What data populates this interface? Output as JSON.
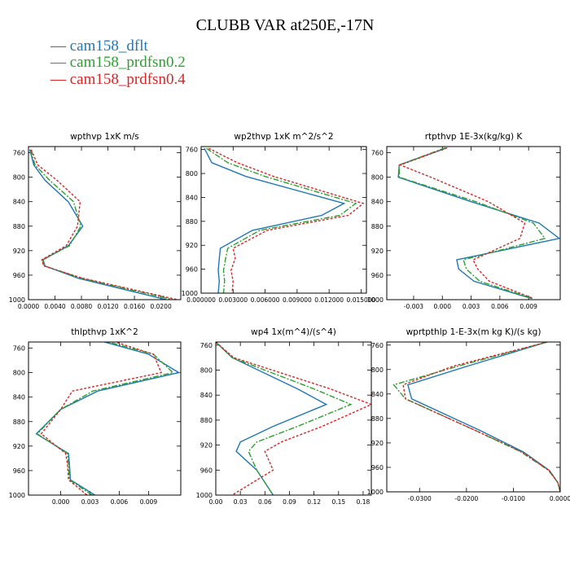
{
  "figure": {
    "title": "CLUBB VAR at250E,-17N",
    "legend": [
      {
        "label": "cam158_dflt",
        "color": "#1f77b4"
      },
      {
        "label": "cam158_prdfsn0.2",
        "color": "#2ca02c"
      },
      {
        "label": "cam158_prdfsn0.4",
        "color": "#d62728"
      }
    ]
  },
  "chart_data": [
    {
      "type": "line",
      "title": "wpthvp  1xK m/s",
      "xlim": [
        0.0,
        0.023
      ],
      "ylim": [
        1000,
        750
      ],
      "xticks": [
        0.0,
        0.004,
        0.008,
        0.012,
        0.016,
        0.02
      ],
      "xticklabels": [
        "0.0000",
        "0.0040",
        "0.0080",
        "0.0120",
        "0.0160",
        "0.0200"
      ],
      "yticks": [
        760,
        800,
        840,
        880,
        920,
        960,
        1000
      ],
      "y": [
        755,
        780,
        805,
        840,
        880,
        912,
        935,
        945,
        965,
        1000
      ],
      "series": [
        {
          "name": "cam158_dflt",
          "values": [
            0.0002,
            0.0008,
            0.0025,
            0.006,
            0.0082,
            0.006,
            0.0022,
            0.0025,
            0.0075,
            0.0208
          ]
        },
        {
          "name": "cam158_prdfsn0.2",
          "values": [
            0.0003,
            0.001,
            0.0032,
            0.0068,
            0.0079,
            0.0062,
            0.0021,
            0.0024,
            0.008,
            0.0218
          ]
        },
        {
          "name": "cam158_prdfsn0.4",
          "values": [
            0.0004,
            0.0014,
            0.0043,
            0.0078,
            0.0074,
            0.0057,
            0.002,
            0.0023,
            0.0082,
            0.0225
          ]
        }
      ]
    },
    {
      "type": "line",
      "title": "wp2thvp  1xK m^2/s^2",
      "xlim": [
        0.0,
        0.0155
      ],
      "ylim": [
        1000,
        755
      ],
      "xticks": [
        0.0,
        0.003,
        0.006,
        0.009,
        0.012,
        0.015
      ],
      "xticklabels": [
        "0.000000",
        "0.003000",
        "0.006000",
        "0.009000",
        "0.012000",
        "0.015000"
      ],
      "yticks": [
        760,
        800,
        840,
        880,
        920,
        960,
        1000
      ],
      "y": [
        758,
        782,
        805,
        850,
        870,
        895,
        925,
        942,
        962,
        980,
        1000
      ],
      "series": [
        {
          "name": "cam158_dflt",
          "values": [
            0.0003,
            0.001,
            0.0042,
            0.0134,
            0.0113,
            0.0048,
            0.0018,
            0.0017,
            0.0016,
            0.0017,
            0.0016
          ]
        },
        {
          "name": "cam158_prdfsn0.2",
          "values": [
            0.0005,
            0.0025,
            0.006,
            0.0145,
            0.013,
            0.0055,
            0.0025,
            0.0023,
            0.0021,
            0.0022,
            0.0021
          ]
        },
        {
          "name": "cam158_prdfsn0.4",
          "values": [
            0.0007,
            0.0034,
            0.0068,
            0.0152,
            0.0138,
            0.0062,
            0.003,
            0.0032,
            0.0028,
            0.003,
            0.0029
          ]
        }
      ]
    },
    {
      "type": "line",
      "title": "rtpthvp  1E-3x(kg/kg) K",
      "xlim": [
        -0.0058,
        0.0123
      ],
      "ylim": [
        1000,
        750
      ],
      "xticks": [
        -0.003,
        0.0,
        0.003,
        0.006,
        0.009
      ],
      "xticklabels": [
        "-0.003",
        "0.000",
        "0.003",
        "0.006",
        "0.009"
      ],
      "yticks": [
        760,
        800,
        840,
        880,
        920,
        960,
        1000
      ],
      "y": [
        752,
        780,
        800,
        840,
        875,
        900,
        935,
        950,
        970,
        998
      ],
      "series": [
        {
          "name": "cam158_dflt",
          "values": [
            0.0005,
            -0.0045,
            -0.0046,
            0.003,
            0.0101,
            0.0122,
            0.0015,
            0.0017,
            0.0033,
            0.0093
          ]
        },
        {
          "name": "cam158_prdfsn0.2",
          "values": [
            0.0003,
            -0.0045,
            -0.0045,
            0.0035,
            0.0095,
            0.0107,
            0.0022,
            0.0025,
            0.0039,
            0.0094
          ]
        },
        {
          "name": "cam158_prdfsn0.4",
          "values": [
            0.0005,
            -0.0044,
            -0.0012,
            0.0048,
            0.0086,
            0.0081,
            0.0032,
            0.0037,
            0.0049,
            0.0095
          ]
        }
      ]
    },
    {
      "type": "line",
      "title": "thlpthvp  1xK^2",
      "xlim": [
        -0.0033,
        0.0123
      ],
      "ylim": [
        1000,
        750
      ],
      "xticks": [
        0.0,
        0.003,
        0.006,
        0.009
      ],
      "xticklabels": [
        "0.000",
        "0.003",
        "0.006",
        "0.009"
      ],
      "yticks": [
        760,
        800,
        840,
        880,
        920,
        960,
        1000
      ],
      "y": [
        747,
        770,
        800,
        830,
        860,
        900,
        932,
        950,
        975,
        1000
      ],
      "series": [
        {
          "name": "cam158_dflt",
          "values": [
            0.0038,
            0.009,
            0.0121,
            0.0038,
            0.0,
            -0.0025,
            0.0008,
            0.0009,
            0.001,
            0.0035
          ]
        },
        {
          "name": "cam158_prdfsn0.2",
          "values": [
            0.0042,
            0.0095,
            0.0115,
            0.0033,
            0.0,
            -0.0024,
            0.0007,
            0.0008,
            0.0009,
            0.0032
          ]
        },
        {
          "name": "cam158_prdfsn0.4",
          "values": [
            0.005,
            0.0095,
            0.0103,
            0.0012,
            0.0,
            -0.002,
            0.0005,
            0.0007,
            0.0008,
            0.0027
          ]
        }
      ]
    },
    {
      "type": "line",
      "title": "wp4  1x(m^4)/(s^4)",
      "xlim": [
        0.0,
        0.19
      ],
      "ylim": [
        1000,
        755
      ],
      "xticks": [
        0.0,
        0.03,
        0.06,
        0.09,
        0.12,
        0.15,
        0.18
      ],
      "xticklabels": [
        "0.00",
        "0.03",
        "0.06",
        "0.09",
        "0.12",
        "0.15",
        "0.18"
      ],
      "yticks": [
        760,
        800,
        840,
        880,
        920,
        960,
        1000
      ],
      "y": [
        755,
        780,
        830,
        855,
        890,
        915,
        930,
        960,
        1000
      ],
      "series": [
        {
          "name": "cam158_dflt",
          "values": [
            0.0,
            0.02,
            0.1,
            0.135,
            0.07,
            0.03,
            0.025,
            0.05,
            0.07
          ]
        },
        {
          "name": "cam158_prdfsn0.2",
          "values": [
            0.0,
            0.02,
            0.12,
            0.165,
            0.1,
            0.05,
            0.04,
            0.05,
            0.07
          ]
        },
        {
          "name": "cam158_prdfsn0.4",
          "values": [
            0.0,
            0.022,
            0.14,
            0.19,
            0.13,
            0.08,
            0.06,
            0.07,
            0.02
          ]
        }
      ]
    },
    {
      "type": "line",
      "title": "wprtpthlp  1-E-3x(m kg K)/(s kg)",
      "xlim": [
        -0.037,
        0.0
      ],
      "ylim": [
        1000,
        755
      ],
      "xticks": [
        -0.03,
        -0.02,
        -0.01,
        0.0
      ],
      "xticklabels": [
        "-0.0300",
        "-0.0200",
        "-0.0100",
        "0.0000"
      ],
      "yticks": [
        760,
        800,
        840,
        880,
        920,
        960,
        1000
      ],
      "y": [
        755,
        795,
        825,
        848,
        900,
        935,
        965,
        985,
        1000
      ],
      "series": [
        {
          "name": "cam158_dflt",
          "values": [
            -0.0028,
            -0.02,
            -0.0325,
            -0.0317,
            -0.017,
            -0.0078,
            -0.0023,
            -0.0005,
            0.0
          ]
        },
        {
          "name": "cam158_prdfsn0.2",
          "values": [
            -0.0028,
            -0.022,
            -0.0355,
            -0.033,
            -0.018,
            -0.0083,
            -0.0025,
            -0.0005,
            0.0
          ]
        },
        {
          "name": "cam158_prdfsn0.4",
          "values": [
            -0.0028,
            -0.023,
            -0.0335,
            -0.033,
            -0.018,
            -0.0081,
            -0.0024,
            -0.0005,
            0.0
          ]
        }
      ]
    }
  ]
}
